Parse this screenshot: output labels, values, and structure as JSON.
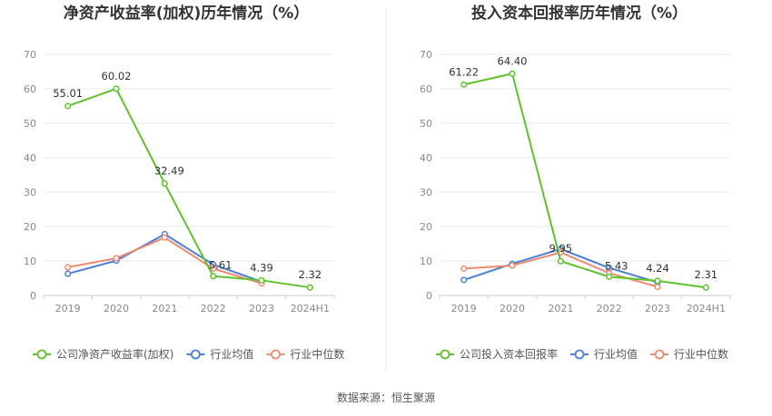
{
  "colors": {
    "company": "#5ec22b",
    "industry_avg": "#4a7fd6",
    "industry_median": "#ef8a70",
    "grid": "#e8e8e8",
    "axis": "#cccccc"
  },
  "source_text": "数据来源：恒生聚源",
  "chart_data": [
    {
      "type": "line",
      "title": "净资产收益率(加权)历年情况（%）",
      "categories": [
        "2019",
        "2020",
        "2021",
        "2022",
        "2023",
        "2024H1"
      ],
      "ylim": [
        0,
        70
      ],
      "yticks": [
        "0",
        "10",
        "20",
        "30",
        "40",
        "50",
        "60",
        "70"
      ],
      "grid": true,
      "legend_position": "bottom",
      "series": [
        {
          "name": "公司净资产收益率(加权)",
          "color_key": "company",
          "values": [
            55.01,
            60.02,
            32.49,
            5.61,
            4.39,
            2.32
          ],
          "labels": [
            "55.01",
            "60.02",
            "32.49",
            "5.61",
            "4.39",
            "2.32"
          ]
        },
        {
          "name": "行业均值",
          "color_key": "industry_avg",
          "values": [
            6.3,
            10.1,
            17.8,
            9.0,
            4.0,
            null
          ]
        },
        {
          "name": "行业中位数",
          "color_key": "industry_median",
          "values": [
            8.2,
            10.8,
            16.8,
            7.8,
            3.5,
            null
          ]
        }
      ]
    },
    {
      "type": "line",
      "title": "投入资本回报率历年情况（%）",
      "categories": [
        "2019",
        "2020",
        "2021",
        "2022",
        "2023",
        "2024H1"
      ],
      "ylim": [
        0,
        70
      ],
      "yticks": [
        "0",
        "10",
        "20",
        "30",
        "40",
        "50",
        "60",
        "70"
      ],
      "grid": true,
      "legend_position": "bottom",
      "series": [
        {
          "name": "公司投入资本回报率",
          "color_key": "company",
          "values": [
            61.22,
            64.4,
            9.95,
            5.43,
            4.24,
            2.31
          ],
          "labels": [
            "61.22",
            "64.40",
            "9.95",
            "5.43",
            "4.24",
            "2.31"
          ]
        },
        {
          "name": "行业均值",
          "color_key": "industry_avg",
          "values": [
            4.5,
            9.2,
            13.5,
            8.0,
            3.8,
            null
          ]
        },
        {
          "name": "行业中位数",
          "color_key": "industry_median",
          "values": [
            7.8,
            8.7,
            12.5,
            6.5,
            2.5,
            null
          ]
        }
      ]
    }
  ]
}
